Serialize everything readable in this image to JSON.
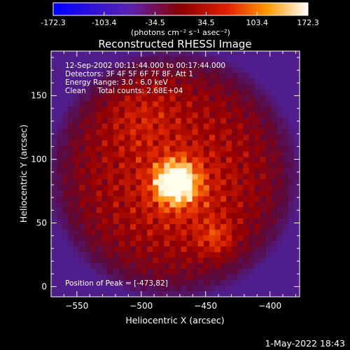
{
  "colorbar": {
    "tick_labels": [
      "-172.3",
      "-103.4",
      "-34.5",
      "34.5",
      "103.4",
      "172.3"
    ],
    "tick_values": [
      -172.3,
      -103.4,
      -34.5,
      34.5,
      103.4,
      172.3
    ],
    "range": [
      -172.3,
      172.3
    ],
    "units": "(photons cm⁻² s⁻¹ asec⁻²)"
  },
  "chart_data": {
    "type": "heatmap",
    "title": "Reconstructed RHESSI Image",
    "xlabel": "Heliocentric X (arcsec)",
    "ylabel": "Heliocentric Y (arcsec)",
    "xlim": [
      -570,
      -377
    ],
    "ylim": [
      -8,
      185
    ],
    "x_ticks": [
      -550,
      -500,
      -450,
      -400
    ],
    "y_ticks": [
      0,
      50,
      100,
      150
    ],
    "colormap": "hot (blue-purple-red-yellow-white)",
    "annotations": [
      "12-Sep-2002 00:11:44.000 to 00:17:44.000",
      "Detectors: 3F 4F 5F 6F 7F 8F, Att 1",
      "Energy Range: 3.0 - 6.0 keV",
      "Clean     Total counts: 2.68E+04"
    ],
    "peak_label": "Position of Peak = [-473,82]",
    "peak": {
      "x": -473,
      "y": 82
    },
    "sources": [
      {
        "x": -473,
        "y": 82,
        "sigma": 11,
        "amp": 172.3
      },
      {
        "x": -470,
        "y": 76,
        "sigma": 22,
        "amp": 40
      },
      {
        "x": -442,
        "y": 38,
        "sigma": 10,
        "amp": 55
      },
      {
        "x": -500,
        "y": 135,
        "sigma": 20,
        "amp": 30
      }
    ]
  },
  "footer": {
    "timestamp": "1-May-2022 18:43"
  }
}
